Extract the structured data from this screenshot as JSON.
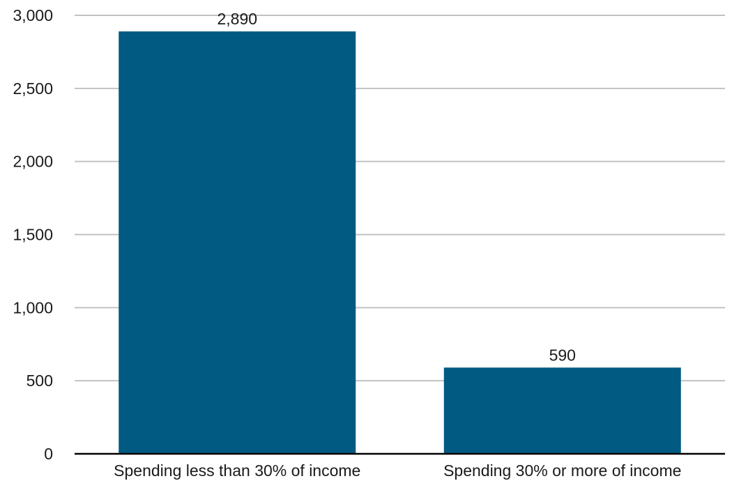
{
  "chart_data": {
    "type": "bar",
    "title": "",
    "xlabel": "",
    "ylabel": "",
    "categories": [
      "Spending less than 30% of income",
      "Spending 30% or more of income"
    ],
    "values": [
      2890,
      590
    ],
    "data_labels": [
      "2,890",
      "590"
    ],
    "ylim": [
      0,
      3000
    ],
    "yticks": [
      0,
      500,
      1000,
      1500,
      2000,
      2500,
      3000
    ],
    "ytick_labels": [
      "0",
      "500",
      "1,000",
      "1,500",
      "2,000",
      "2,500",
      "3,000"
    ],
    "grid": true,
    "legend": "none",
    "bar_color": "#005a82"
  }
}
